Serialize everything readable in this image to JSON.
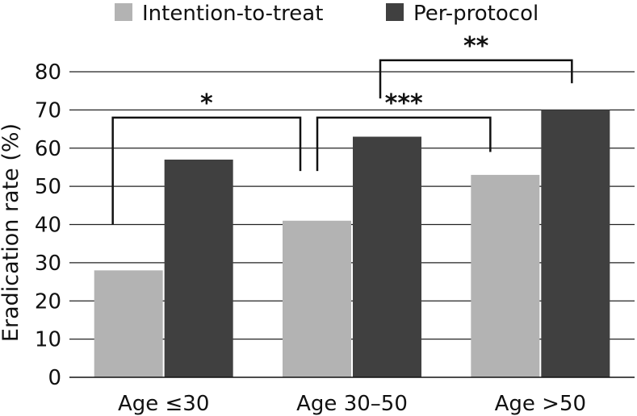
{
  "chart_data": {
    "type": "bar",
    "title": "",
    "xlabel": "",
    "ylabel": "Eradication rate (%)",
    "ylim": [
      0,
      80
    ],
    "yticks": [
      0,
      10,
      20,
      30,
      40,
      50,
      60,
      70,
      80
    ],
    "grid": true,
    "legend_position": "top",
    "categories": [
      "Age ≤30",
      "Age 30–50",
      "Age >50"
    ],
    "series": [
      {
        "name": "Intention-to-treat",
        "color": "#b3b3b3",
        "values": [
          28,
          41,
          53
        ]
      },
      {
        "name": "Per-protocol",
        "color": "#404040",
        "values": [
          57,
          63,
          70
        ]
      }
    ],
    "annotations": [
      {
        "label": "*",
        "from_category": 0,
        "to_category": 1,
        "left_y": 40,
        "right_y": 54,
        "top_y": 68
      },
      {
        "label": "***",
        "from_category": 1,
        "to_category": 2,
        "left_y": 54,
        "right_y": 59,
        "top_y": 68
      },
      {
        "label": "**",
        "from_category": 1,
        "to_category": 2,
        "left_y": 73,
        "right_y": 77,
        "top_y": 83
      }
    ]
  }
}
